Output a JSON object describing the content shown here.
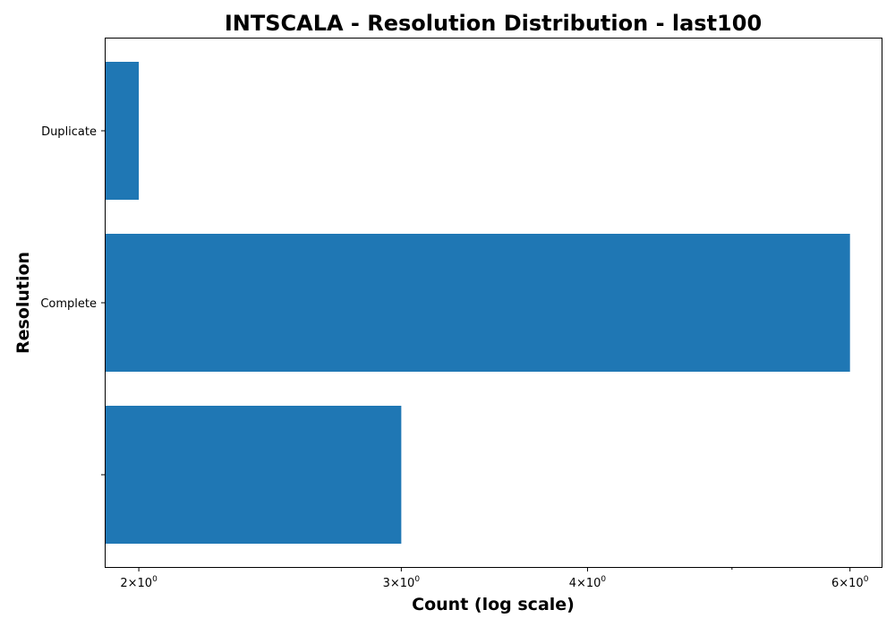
{
  "colors": {
    "bar": "#1f77b4",
    "axis": "#000000",
    "background": "#ffffff"
  },
  "chart_data": {
    "type": "bar",
    "orientation": "horizontal",
    "title": "INTSCALA - Resolution Distribution - last100",
    "xlabel": "Count (log scale)",
    "ylabel": "Resolution",
    "xscale": "log",
    "xlim": [
      1.9,
      6.3
    ],
    "xticks": [
      {
        "value": 2,
        "label": "2×10",
        "exp": "0"
      },
      {
        "value": 3,
        "label": "3×10",
        "exp": "0"
      },
      {
        "value": 4,
        "label": "4×10",
        "exp": "0"
      },
      {
        "value": 6,
        "label": "6×10",
        "exp": "0"
      }
    ],
    "minor_xticks": [
      5
    ],
    "categories": [
      "",
      "Complete",
      "Duplicate"
    ],
    "values": [
      3,
      6,
      2
    ],
    "grid": false,
    "legend": "none"
  }
}
